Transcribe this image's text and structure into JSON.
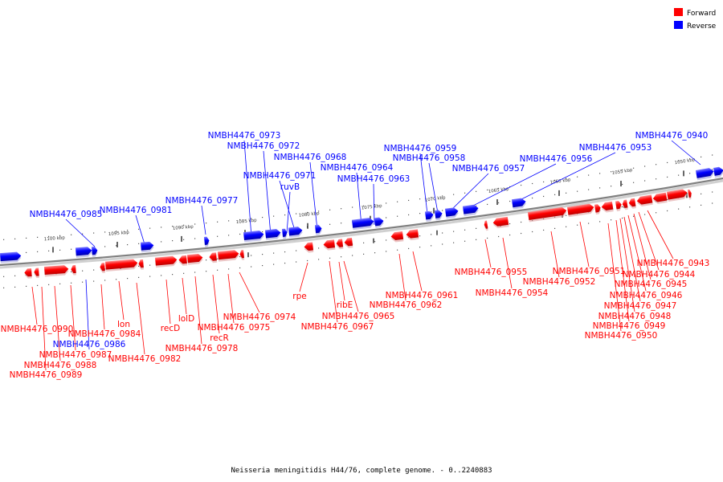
{
  "legend": {
    "forward": {
      "label": "Forward",
      "color": "#ff0000"
    },
    "reverse": {
      "label": "Reverse",
      "color": "#0000ff"
    }
  },
  "colors": {
    "backbone": "#808080",
    "forward": "#ff0000",
    "reverse": "#0000ff"
  },
  "caption": "Neisseria meningitidis H44/76, complete genome. - 0..2240883",
  "ticks": [
    "1100 kbp",
    "1095 kbp",
    "1090 kbp",
    "1085 kbp",
    "1080 kbp",
    "1075 kbp",
    "1070 kbp",
    "1065 kbp",
    "1060 kbp",
    "1055 kbp",
    "1050 kbp"
  ],
  "reverse_labels": [
    "NMBH4476_0940",
    "NMBH4476_0953",
    "NMBH4476_0956",
    "NMBH4476_0957",
    "NMBH4476_0958",
    "NMBH4476_0959",
    "NMBH4476_0963",
    "NMBH4476_0964",
    "NMBH4476_0968",
    "ruvB",
    "NMBH4476_0971",
    "NMBH4476_0972",
    "NMBH4476_0973",
    "NMBH4476_0977",
    "NMBH4476_0981",
    "NMBH4476_0985",
    "NMBH4476_0986"
  ],
  "forward_labels": [
    "NMBH4476_0943",
    "NMBH4476_0944",
    "NMBH4476_0945",
    "NMBH4476_0946",
    "NMBH4476_0947",
    "NMBH4476_0948",
    "NMBH4476_0949",
    "NMBH4476_0950",
    "NMBH4476_0951",
    "NMBH4476_0952",
    "NMBH4476_0954",
    "NMBH4476_0955",
    "NMBH4476_0961",
    "NMBH4476_0962",
    "rpe",
    "ribE",
    "NMBH4476_0965",
    "NMBH4476_0967",
    "NMBH4476_0974",
    "NMBH4476_0975",
    "recR",
    "NMBH4476_0978",
    "lolD",
    "recD",
    "lon",
    "NMBH4476_0982",
    "NMBH4476_0984",
    "NMBH4476_0987",
    "NMBH4476_0988",
    "NMBH4476_0989",
    "NMBH4476_0990"
  ]
}
